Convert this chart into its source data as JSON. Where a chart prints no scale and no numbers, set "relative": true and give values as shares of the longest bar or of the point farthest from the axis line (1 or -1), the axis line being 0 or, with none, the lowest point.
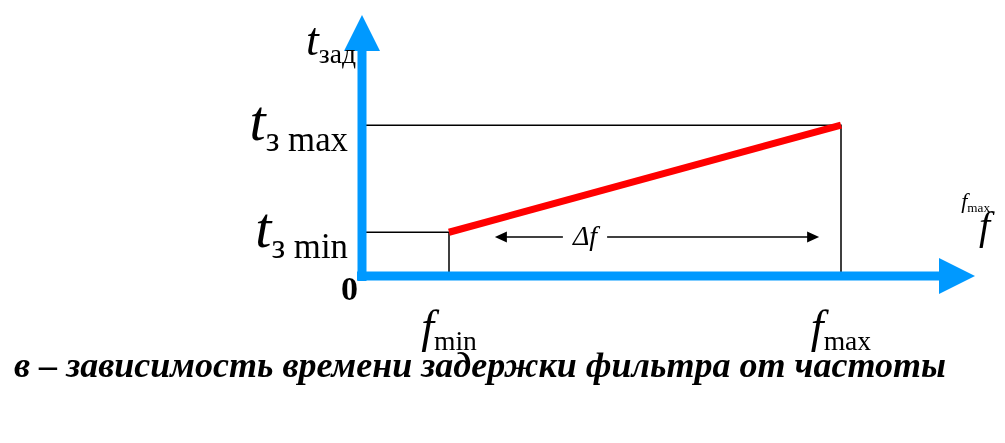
{
  "chart_data": {
    "type": "line",
    "title": "в – зависимость времени задержки фильтра от частоты",
    "xlabel": "f",
    "ylabel": "t$_{зад}$",
    "relative": true,
    "categories": [
      "f$_{min}$",
      "f$_{max}$"
    ],
    "series": [
      {
        "color": "#ff0000",
        "values": [
          0.29,
          1
        ]
      }
    ],
    "annotations": [
      "t$_{з min}$",
      "t$_{з max}$",
      "0",
      "Δf",
      "f$_{max}$"
    ],
    "grid": false,
    "legend": false,
    "marker": "none",
    "line_style": "solid"
  }
}
